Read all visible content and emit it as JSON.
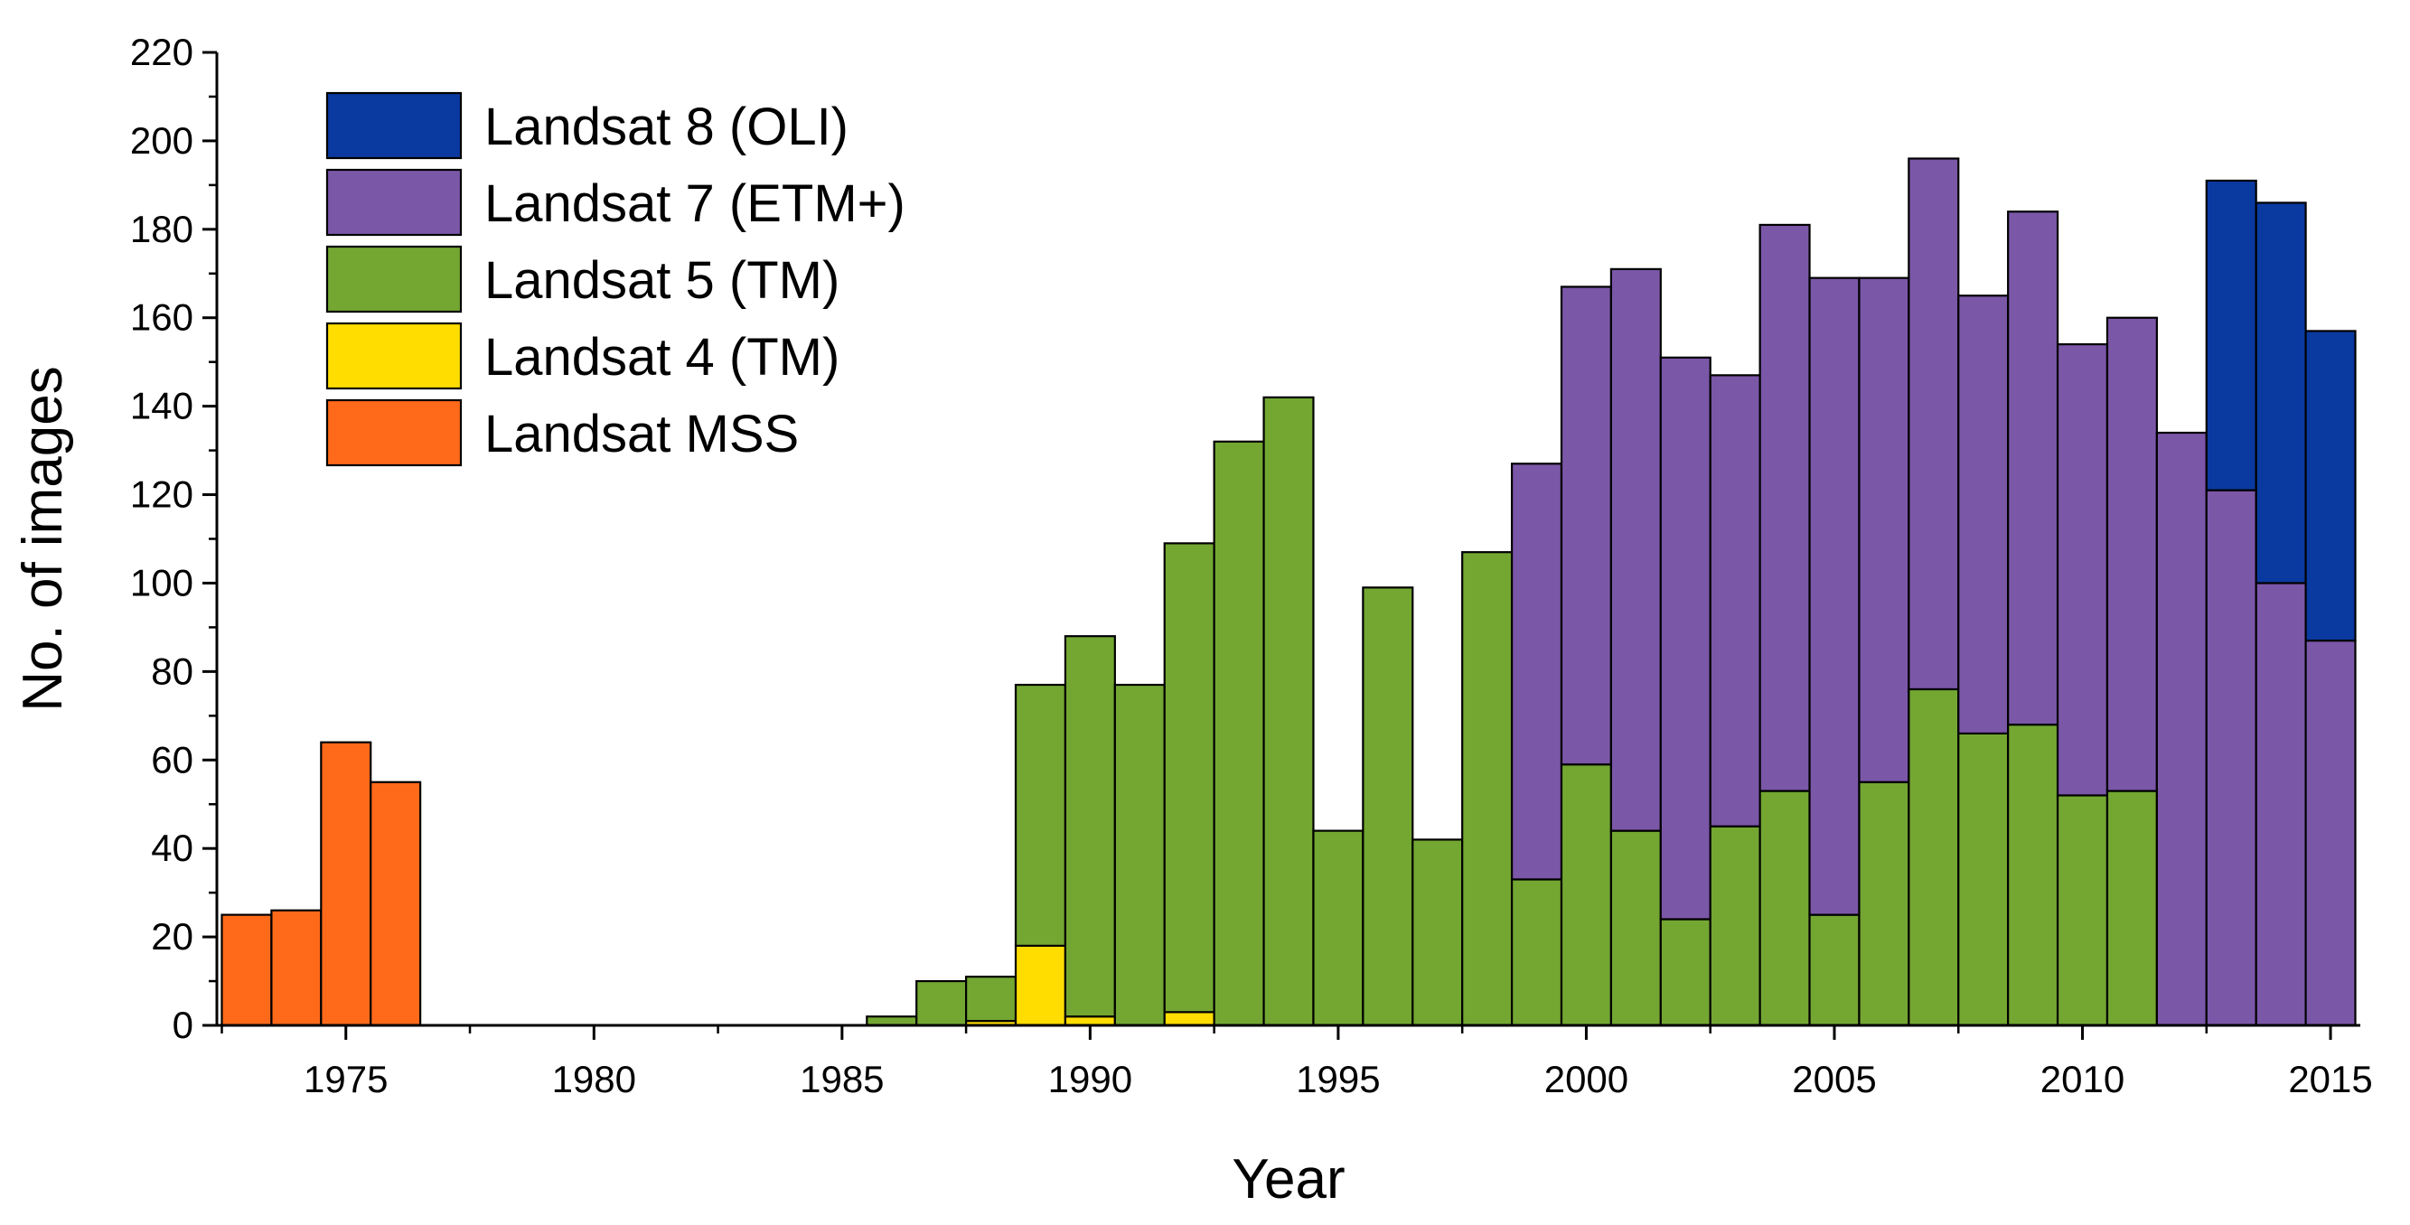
{
  "chart_data": {
    "type": "bar",
    "stacked": true,
    "title": "",
    "xlabel": "Year",
    "ylabel": "No. of images",
    "xlim": [
      1972.4,
      2015.6
    ],
    "ylim": [
      0,
      220
    ],
    "x_ticks": [
      1975,
      1980,
      1985,
      1990,
      1995,
      2000,
      2005,
      2010,
      2015
    ],
    "y_ticks": [
      0,
      20,
      40,
      60,
      80,
      100,
      120,
      140,
      160,
      180,
      200,
      220
    ],
    "grid": false,
    "legend_position": "top-left",
    "legend_order": [
      "Landsat 8 (OLI)",
      "Landsat 7 (ETM+)",
      "Landsat 5 (TM)",
      "Landsat 4 (TM)",
      "Landsat MSS"
    ],
    "categories": [
      1973,
      1974,
      1975,
      1976,
      1977,
      1978,
      1979,
      1980,
      1981,
      1982,
      1983,
      1984,
      1985,
      1986,
      1987,
      1988,
      1989,
      1990,
      1991,
      1992,
      1993,
      1994,
      1995,
      1996,
      1997,
      1998,
      1999,
      2000,
      2001,
      2002,
      2003,
      2004,
      2005,
      2006,
      2007,
      2008,
      2009,
      2010,
      2011,
      2012,
      2013,
      2014,
      2015
    ],
    "series": [
      {
        "name": "Landsat MSS",
        "color": "#FF6A1A",
        "values": [
          25,
          26,
          64,
          55,
          0,
          0,
          0,
          0,
          0,
          0,
          0,
          0,
          0,
          0,
          0,
          0,
          0,
          0,
          0,
          0,
          0,
          0,
          0,
          0,
          0,
          0,
          0,
          0,
          0,
          0,
          0,
          0,
          0,
          0,
          0,
          0,
          0,
          0,
          0,
          0,
          0,
          0,
          0
        ]
      },
      {
        "name": "Landsat 4 (TM)",
        "color": "#FFDD00",
        "values": [
          0,
          0,
          0,
          0,
          0,
          0,
          0,
          0,
          0,
          0,
          0,
          0,
          0,
          0,
          0,
          1,
          18,
          2,
          0,
          3,
          0,
          0,
          0,
          0,
          0,
          0,
          0,
          0,
          0,
          0,
          0,
          0,
          0,
          0,
          0,
          0,
          0,
          0,
          0,
          0,
          0,
          0,
          0
        ]
      },
      {
        "name": "Landsat 5 (TM)",
        "color": "#73A732",
        "values": [
          0,
          0,
          0,
          0,
          0,
          0,
          0,
          0,
          0,
          0,
          0,
          0,
          0,
          2,
          10,
          10,
          59,
          86,
          77,
          106,
          132,
          142,
          44,
          99,
          42,
          107,
          33,
          59,
          44,
          24,
          45,
          53,
          25,
          55,
          76,
          66,
          68,
          52,
          53,
          0,
          0,
          0,
          0
        ]
      },
      {
        "name": "Landsat 7 (ETM+)",
        "color": "#7B57A8",
        "values": [
          0,
          0,
          0,
          0,
          0,
          0,
          0,
          0,
          0,
          0,
          0,
          0,
          0,
          0,
          0,
          0,
          0,
          0,
          0,
          0,
          0,
          0,
          0,
          0,
          0,
          0,
          94,
          108,
          127,
          127,
          102,
          128,
          144,
          114,
          120,
          99,
          116,
          102,
          107,
          134,
          121,
          100,
          87
        ]
      },
      {
        "name": "Landsat 8 (OLI)",
        "color": "#0A3AA0",
        "values": [
          0,
          0,
          0,
          0,
          0,
          0,
          0,
          0,
          0,
          0,
          0,
          0,
          0,
          0,
          0,
          0,
          0,
          0,
          0,
          0,
          0,
          0,
          0,
          0,
          0,
          0,
          0,
          0,
          0,
          0,
          0,
          0,
          0,
          0,
          0,
          0,
          0,
          0,
          0,
          0,
          70,
          86,
          70
        ]
      }
    ]
  }
}
